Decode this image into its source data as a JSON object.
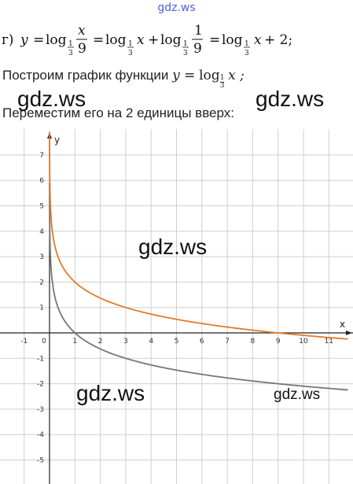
{
  "site_label": "gdz.ws",
  "formula": {
    "item": "г)",
    "y": "y",
    "log": "log",
    "base_num": "1",
    "base_den": "3",
    "x": "x",
    "nine": "9",
    "one": "1",
    "plus_two": "+ 2;"
  },
  "text": {
    "line2": "Построим график функции",
    "line2_fn_y": "y =",
    "line2_fn_log": "log",
    "line2_fn_base_num": "1",
    "line2_fn_base_den": "3",
    "line2_fn_x": "x ;",
    "line3": "Переместим его на 2 единицы вверх:"
  },
  "watermarks": [
    "gdz.ws",
    "gdz.ws",
    "gdz.ws",
    "gdz.ws",
    "gdz.ws"
  ],
  "chart_data": {
    "type": "line",
    "xlabel": "x",
    "ylabel": "y",
    "xlim": [
      -1.8,
      11.8
    ],
    "ylim": [
      -5.8,
      7.6
    ],
    "x_ticks": [
      "-1",
      "0",
      "1",
      "2",
      "3",
      "4",
      "5",
      "6",
      "7",
      "8",
      "9",
      "10",
      "11"
    ],
    "y_ticks": [
      "7",
      "6",
      "5",
      "4",
      "3",
      "2",
      "1",
      "-1",
      "-2",
      "-3",
      "-4",
      "-5"
    ],
    "grid": true,
    "series": [
      {
        "function": "log_1/3(x)",
        "color": "#777777",
        "x": [
          0.01,
          0.05,
          0.1,
          0.3,
          0.5,
          1,
          2,
          3,
          5,
          7,
          9,
          11.8
        ],
        "values": [
          4.19,
          2.73,
          2.1,
          1.1,
          0.63,
          0,
          -0.63,
          -1,
          -1.46,
          -1.77,
          -2,
          -2.25
        ]
      },
      {
        "function": "log_1/3(x) + 2",
        "color": "#e07b2c",
        "x": [
          0.01,
          0.05,
          0.1,
          0.3,
          0.5,
          1,
          2,
          3,
          5,
          7,
          9,
          11.8
        ],
        "values": [
          6.19,
          4.73,
          4.1,
          3.1,
          2.63,
          2,
          1.37,
          1,
          0.54,
          0.23,
          0,
          -0.25
        ]
      }
    ]
  }
}
